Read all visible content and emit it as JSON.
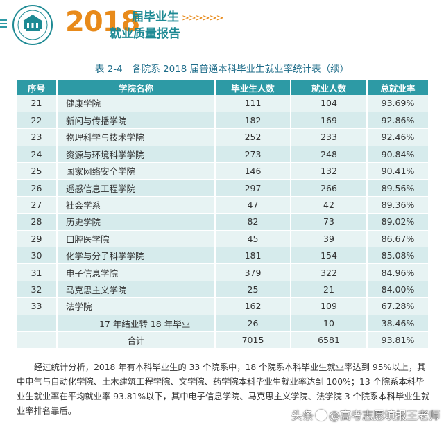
{
  "header": {
    "year": "2018",
    "subtitle_top": "届毕业生",
    "chevrons": ">>>>>>",
    "subtitle_bottom": "就业质量报告",
    "logo_icon": "university-seal-icon",
    "menu_icon": "menu-icon",
    "accent_color": "#e88a1a",
    "brand_color": "#1e8a94"
  },
  "table": {
    "title": "表 2-4　各院系 2018 届普通本科毕业生就业率统计表（续）",
    "headers": [
      "序号",
      "学院名称",
      "毕业生人数",
      "就业人数",
      "总就业率"
    ],
    "rows": [
      [
        "21",
        "健康学院",
        "111",
        "104",
        "93.69%"
      ],
      [
        "22",
        "新闻与传播学院",
        "182",
        "169",
        "92.86%"
      ],
      [
        "23",
        "物理科学与技术学院",
        "252",
        "233",
        "92.46%"
      ],
      [
        "24",
        "资源与环境科学学院",
        "273",
        "248",
        "90.84%"
      ],
      [
        "25",
        "国家网络安全学院",
        "146",
        "132",
        "90.41%"
      ],
      [
        "26",
        "遥感信息工程学院",
        "297",
        "266",
        "89.56%"
      ],
      [
        "27",
        "社会学系",
        "47",
        "42",
        "89.36%"
      ],
      [
        "28",
        "历史学院",
        "82",
        "73",
        "89.02%"
      ],
      [
        "29",
        "口腔医学院",
        "45",
        "39",
        "86.67%"
      ],
      [
        "30",
        "化学与分子科学学院",
        "181",
        "154",
        "85.08%"
      ],
      [
        "31",
        "电子信息学院",
        "379",
        "322",
        "84.96%"
      ],
      [
        "32",
        "马克思主义学院",
        "25",
        "21",
        "84.00%"
      ],
      [
        "33",
        "法学院",
        "162",
        "109",
        "67.28%"
      ],
      [
        "",
        "17 年结业转 18 年毕业",
        "26",
        "10",
        "38.46%"
      ],
      [
        "",
        "合计",
        "7015",
        "6581",
        "93.81%"
      ]
    ]
  },
  "paragraph": "经过统计分析，2018 年有本科毕业生的 33 个院系中，18 个院系本科毕业生就业率达到 95%以上，其中电气与自动化学院、土木建筑工程学院、文学院、药学院本科毕业生就业率达到 100%；13 个院系本科毕业生就业率在平均就业率 93.81%以下，其中电子信息学院、马克思主义学院、法学院 3 个院系本科毕业生就业率排名靠后。",
  "watermark": {
    "prefix": "头条",
    "handle": "@高考志愿填报王老师"
  }
}
